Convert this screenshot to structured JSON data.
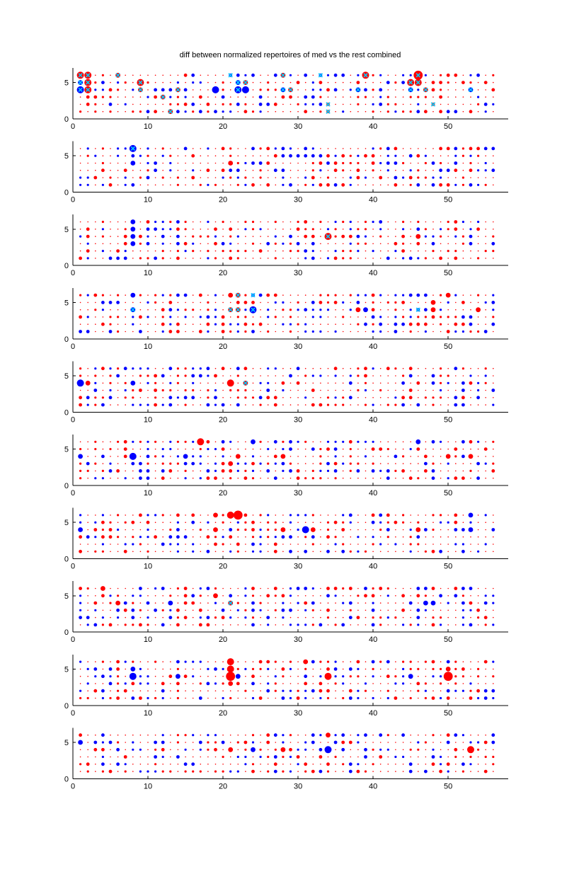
{
  "chart_data": {
    "type": "scatter",
    "title": "diff between normalized repertoires of med vs the rest combined",
    "xlabel": "",
    "ylabel": "",
    "xlim": [
      0,
      58
    ],
    "ylim": [
      0,
      7
    ],
    "x_ticks": [
      0,
      10,
      20,
      30,
      40,
      50
    ],
    "y_ticks": [
      0,
      5
    ],
    "encoding": "marker area proportional to magnitude of difference; color = sign; 'x' marks flagged cells",
    "colors": {
      "positive": "#ff0000",
      "negative": "#0000ff",
      "flag": "#00ccff",
      "axis": "#000000"
    },
    "grid": false,
    "legend": "none",
    "n_subplots": 10,
    "x_range": [
      1,
      56
    ],
    "y_range": [
      1,
      6
    ],
    "subplots": [
      {
        "panel": 1,
        "notable_points": [
          {
            "x": 1,
            "y": 6,
            "v": 4,
            "flag": true
          },
          {
            "x": 2,
            "y": 6,
            "v": 4,
            "flag": true
          },
          {
            "x": 1,
            "y": 5,
            "v": -3,
            "flag": true
          },
          {
            "x": 2,
            "y": 5,
            "v": 4,
            "flag": true
          },
          {
            "x": 1,
            "y": 4,
            "v": -4,
            "flag": true
          },
          {
            "x": 2,
            "y": 4,
            "v": 4,
            "flag": true
          },
          {
            "x": 6,
            "y": 6,
            "v": 3,
            "flag": true
          },
          {
            "x": 9,
            "y": 5,
            "v": 4,
            "flag": true
          },
          {
            "x": 9,
            "y": 4,
            "v": 3,
            "flag": true
          },
          {
            "x": 12,
            "y": 3,
            "v": 3,
            "flag": true
          },
          {
            "x": 13,
            "y": 1,
            "v": 3,
            "flag": true
          },
          {
            "x": 14,
            "y": 4,
            "v": 3,
            "flag": true
          },
          {
            "x": 16,
            "y": 6,
            "v": -2
          },
          {
            "x": 17,
            "y": 3,
            "v": 2
          },
          {
            "x": 19,
            "y": 4,
            "v": -4
          },
          {
            "x": 21,
            "y": 6,
            "v": -2,
            "flag": true
          },
          {
            "x": 22,
            "y": 5,
            "v": -3,
            "flag": true
          },
          {
            "x": 22,
            "y": 4,
            "v": -4,
            "flag": true
          },
          {
            "x": 23,
            "y": 5,
            "v": 3,
            "flag": true
          },
          {
            "x": 23,
            "y": 4,
            "v": -4
          },
          {
            "x": 24,
            "y": 6,
            "v": -2
          },
          {
            "x": 28,
            "y": 6,
            "v": 3,
            "flag": true
          },
          {
            "x": 28,
            "y": 4,
            "v": -3,
            "flag": true
          },
          {
            "x": 29,
            "y": 4,
            "v": 3,
            "flag": true
          },
          {
            "x": 33,
            "y": 6,
            "v": -2,
            "flag": true
          },
          {
            "x": 34,
            "y": 2,
            "v": 2,
            "flag": true
          },
          {
            "x": 34,
            "y": 1,
            "v": 2,
            "flag": true
          },
          {
            "x": 38,
            "y": 4,
            "v": -3,
            "flag": true
          },
          {
            "x": 39,
            "y": 6,
            "v": 4,
            "flag": true
          },
          {
            "x": 45,
            "y": 5,
            "v": 4,
            "flag": true
          },
          {
            "x": 45,
            "y": 4,
            "v": -3,
            "flag": true
          },
          {
            "x": 46,
            "y": 6,
            "v": 5,
            "flag": true
          },
          {
            "x": 46,
            "y": 5,
            "v": 4,
            "flag": true
          },
          {
            "x": 47,
            "y": 4,
            "v": 3,
            "flag": true
          },
          {
            "x": 48,
            "y": 2,
            "v": 2,
            "flag": true
          },
          {
            "x": 50,
            "y": 6,
            "v": 2
          },
          {
            "x": 53,
            "y": 4,
            "v": -3,
            "flag": true
          }
        ]
      },
      {
        "panel": 2,
        "notable_points": [
          {
            "x": 8,
            "y": 6,
            "v": -4,
            "flag": true
          },
          {
            "x": 8,
            "y": 4,
            "v": -3
          },
          {
            "x": 21,
            "y": 4,
            "v": 3
          },
          {
            "x": 33,
            "y": 4,
            "v": 2
          },
          {
            "x": 48,
            "y": 4,
            "v": -2
          },
          {
            "x": 50,
            "y": 6,
            "v": 2
          },
          {
            "x": 53,
            "y": 6,
            "v": 2
          }
        ]
      },
      {
        "panel": 3,
        "notable_points": [
          {
            "x": 8,
            "y": 6,
            "v": -3
          },
          {
            "x": 8,
            "y": 5,
            "v": -3
          },
          {
            "x": 8,
            "y": 4,
            "v": -3
          },
          {
            "x": 8,
            "y": 3,
            "v": -3
          },
          {
            "x": 34,
            "y": 4,
            "v": 4,
            "flag": true
          },
          {
            "x": 46,
            "y": 4,
            "v": 3
          },
          {
            "x": 53,
            "y": 4,
            "v": -2
          }
        ]
      },
      {
        "panel": 4,
        "notable_points": [
          {
            "x": 8,
            "y": 6,
            "v": -3
          },
          {
            "x": 8,
            "y": 4,
            "v": -3,
            "flag": true
          },
          {
            "x": 21,
            "y": 6,
            "v": 3
          },
          {
            "x": 22,
            "y": 6,
            "v": 3,
            "flag": true
          },
          {
            "x": 21,
            "y": 4,
            "v": 3,
            "flag": true
          },
          {
            "x": 22,
            "y": 4,
            "v": 3,
            "flag": true
          },
          {
            "x": 24,
            "y": 6,
            "v": -2,
            "flag": true
          },
          {
            "x": 24,
            "y": 4,
            "v": -4,
            "flag": true
          },
          {
            "x": 38,
            "y": 4,
            "v": 3
          },
          {
            "x": 39,
            "y": 4,
            "v": -3
          },
          {
            "x": 46,
            "y": 4,
            "v": -2,
            "flag": true
          },
          {
            "x": 48,
            "y": 5,
            "v": 3
          },
          {
            "x": 48,
            "y": 4,
            "v": 3
          },
          {
            "x": 50,
            "y": 6,
            "v": 3
          },
          {
            "x": 54,
            "y": 4,
            "v": 3
          }
        ]
      },
      {
        "panel": 5,
        "notable_points": [
          {
            "x": 1,
            "y": 4,
            "v": -4
          },
          {
            "x": 2,
            "y": 4,
            "v": 3
          },
          {
            "x": 8,
            "y": 4,
            "v": -3
          },
          {
            "x": 21,
            "y": 4,
            "v": 4
          },
          {
            "x": 23,
            "y": 4,
            "v": 3,
            "flag": true
          },
          {
            "x": 28,
            "y": 4,
            "v": 2
          },
          {
            "x": 53,
            "y": 4,
            "v": 2
          }
        ]
      },
      {
        "panel": 6,
        "notable_points": [
          {
            "x": 1,
            "y": 4,
            "v": -3
          },
          {
            "x": 8,
            "y": 4,
            "v": -4
          },
          {
            "x": 15,
            "y": 4,
            "v": -3
          },
          {
            "x": 17,
            "y": 6,
            "v": 4
          },
          {
            "x": 21,
            "y": 3,
            "v": 3
          },
          {
            "x": 22,
            "y": 4,
            "v": 3
          },
          {
            "x": 24,
            "y": 6,
            "v": -3
          },
          {
            "x": 28,
            "y": 4,
            "v": 3
          },
          {
            "x": 46,
            "y": 6,
            "v": -3
          },
          {
            "x": 50,
            "y": 4,
            "v": 3
          },
          {
            "x": 53,
            "y": 4,
            "v": 3
          }
        ]
      },
      {
        "panel": 7,
        "notable_points": [
          {
            "x": 1,
            "y": 4,
            "v": -3
          },
          {
            "x": 19,
            "y": 6,
            "v": 3
          },
          {
            "x": 19,
            "y": 4,
            "v": 3
          },
          {
            "x": 21,
            "y": 6,
            "v": 4
          },
          {
            "x": 22,
            "y": 6,
            "v": 5
          },
          {
            "x": 21,
            "y": 4,
            "v": -2
          },
          {
            "x": 28,
            "y": 4,
            "v": 3
          },
          {
            "x": 31,
            "y": 4,
            "v": -4
          },
          {
            "x": 32,
            "y": 4,
            "v": 3
          },
          {
            "x": 46,
            "y": 4,
            "v": 3
          },
          {
            "x": 53,
            "y": 6,
            "v": -3
          },
          {
            "x": 53,
            "y": 4,
            "v": -3
          }
        ]
      },
      {
        "panel": 8,
        "notable_points": [
          {
            "x": 4,
            "y": 6,
            "v": 3
          },
          {
            "x": 6,
            "y": 4,
            "v": 3
          },
          {
            "x": 13,
            "y": 4,
            "v": -3
          },
          {
            "x": 19,
            "y": 5,
            "v": 3
          },
          {
            "x": 21,
            "y": 4,
            "v": 3,
            "flag": true
          },
          {
            "x": 47,
            "y": 4,
            "v": -3
          },
          {
            "x": 48,
            "y": 4,
            "v": -3
          }
        ]
      },
      {
        "panel": 9,
        "notable_points": [
          {
            "x": 8,
            "y": 5,
            "v": -3
          },
          {
            "x": 8,
            "y": 4,
            "v": -4
          },
          {
            "x": 14,
            "y": 4,
            "v": -3
          },
          {
            "x": 21,
            "y": 6,
            "v": 4
          },
          {
            "x": 21,
            "y": 5,
            "v": 4
          },
          {
            "x": 21,
            "y": 4,
            "v": 5
          },
          {
            "x": 21,
            "y": 3,
            "v": 3
          },
          {
            "x": 22,
            "y": 4,
            "v": -3
          },
          {
            "x": 31,
            "y": 6,
            "v": 3
          },
          {
            "x": 34,
            "y": 4,
            "v": 4
          },
          {
            "x": 45,
            "y": 4,
            "v": -3
          },
          {
            "x": 50,
            "y": 5,
            "v": 3
          },
          {
            "x": 50,
            "y": 4,
            "v": 5
          }
        ]
      },
      {
        "panel": 10,
        "notable_points": [
          {
            "x": 1,
            "y": 5,
            "v": -3
          },
          {
            "x": 4,
            "y": 6,
            "v": -2
          },
          {
            "x": 21,
            "y": 4,
            "v": 3
          },
          {
            "x": 24,
            "y": 4,
            "v": -3
          },
          {
            "x": 28,
            "y": 4,
            "v": 3
          },
          {
            "x": 34,
            "y": 6,
            "v": 3
          },
          {
            "x": 34,
            "y": 4,
            "v": -4
          },
          {
            "x": 53,
            "y": 4,
            "v": 4
          }
        ]
      }
    ]
  }
}
